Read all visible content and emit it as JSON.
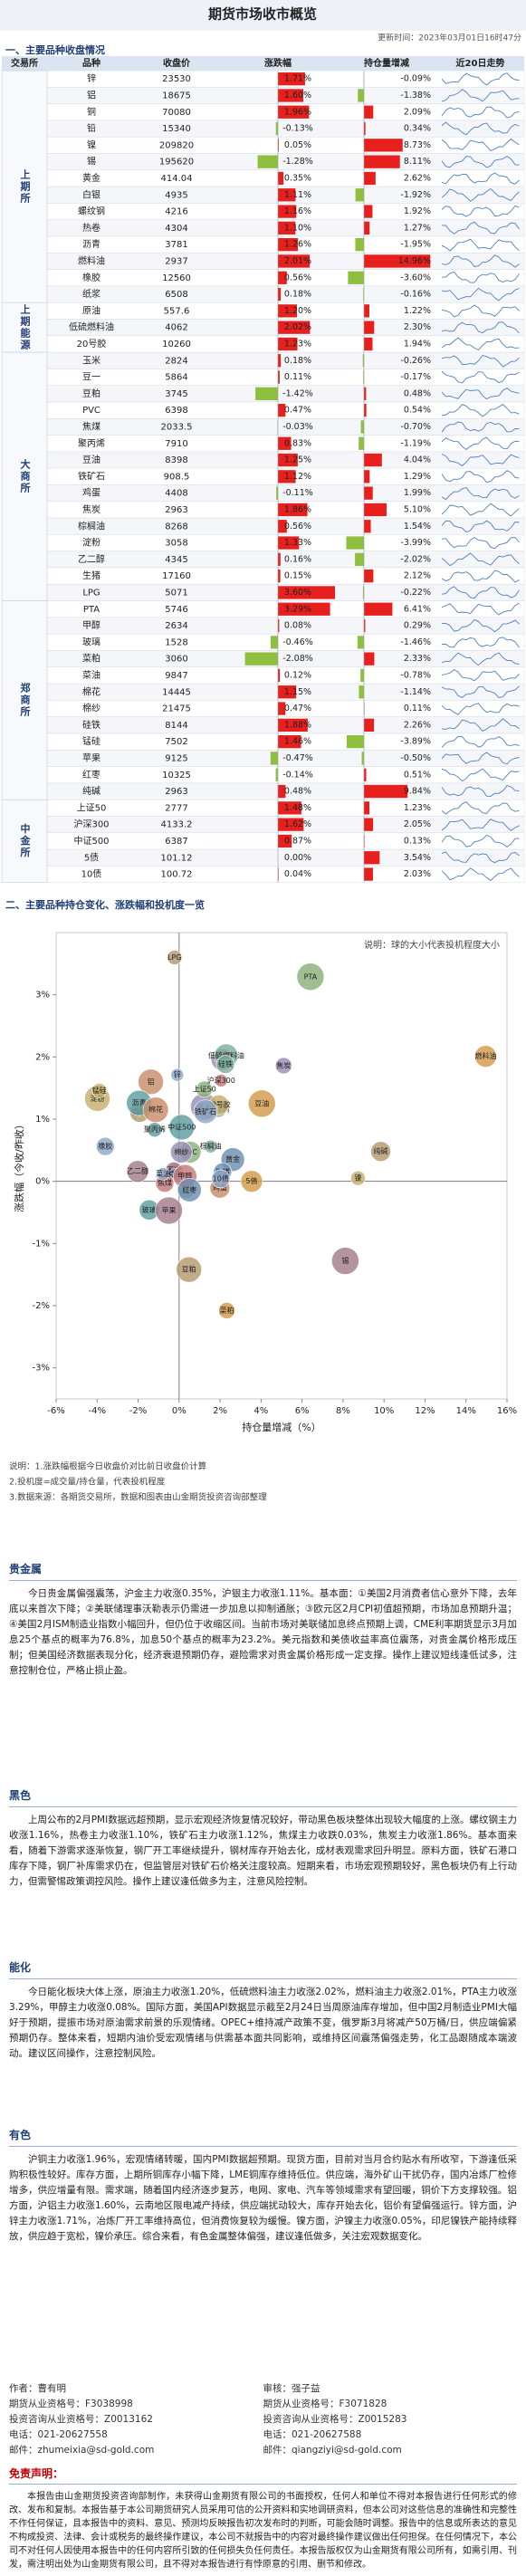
{
  "header": {
    "title": "期货市场收市概览",
    "updated": "更新时间：2023年03月01日16时47分"
  },
  "table": {
    "section": "一、主要品种收盘情况",
    "headers": [
      "交易所",
      "品种",
      "收盘价",
      "涨跌幅",
      "持仓量增减",
      "近20日走势"
    ],
    "groups": [
      {
        "name": "上期所",
        "rows": [
          {
            "name": "锌",
            "price": 23530,
            "change": {
              "value": 1.71,
              "label": "1.71%"
            },
            "hold": {
              "value": -0.09,
              "label": "-0.09%"
            }
          },
          {
            "name": "铝",
            "price": 18675,
            "change": {
              "value": 1.6,
              "label": "1.60%"
            },
            "hold": {
              "value": -1.38,
              "label": "-1.38%"
            }
          },
          {
            "name": "铜",
            "price": 70080,
            "change": {
              "value": 1.96,
              "label": "1.96%"
            },
            "hold": {
              "value": 2.09,
              "label": "2.09%"
            }
          },
          {
            "name": "铅",
            "price": 15340,
            "change": {
              "value": -0.13,
              "label": "-0.13%"
            },
            "hold": {
              "value": 0.34,
              "label": "0.34%"
            }
          },
          {
            "name": "镍",
            "price": 209820,
            "change": {
              "value": 0.05,
              "label": "0.05%"
            },
            "hold": {
              "value": 8.73,
              "label": "8.73%"
            }
          },
          {
            "name": "锡",
            "price": 195620,
            "change": {
              "value": -1.28,
              "label": "-1.28%"
            },
            "hold": {
              "value": 8.11,
              "label": "8.11%"
            }
          },
          {
            "name": "黄金",
            "price": 414.04,
            "change": {
              "value": 0.35,
              "label": "0.35%"
            },
            "hold": {
              "value": 2.62,
              "label": "2.62%"
            }
          },
          {
            "name": "白银",
            "price": 4935,
            "change": {
              "value": 1.11,
              "label": "1.11%"
            },
            "hold": {
              "value": -1.92,
              "label": "-1.92%"
            }
          },
          {
            "name": "螺纹钢",
            "price": 4216,
            "change": {
              "value": 1.16,
              "label": "1.16%"
            },
            "hold": {
              "value": 1.92,
              "label": "1.92%"
            }
          },
          {
            "name": "热卷",
            "price": 4304,
            "change": {
              "value": 1.1,
              "label": "1.10%"
            },
            "hold": {
              "value": 1.27,
              "label": "1.27%"
            }
          },
          {
            "name": "沥青",
            "price": 3781,
            "change": {
              "value": 1.26,
              "label": "1.26%"
            },
            "hold": {
              "value": -1.95,
              "label": "-1.95%"
            }
          },
          {
            "name": "燃料油",
            "price": 2937,
            "change": {
              "value": 2.01,
              "label": "2.01%"
            },
            "hold": {
              "value": 14.96,
              "label": "14.96%"
            }
          },
          {
            "name": "橡胶",
            "price": 12560,
            "change": {
              "value": 0.56,
              "label": "0.56%"
            },
            "hold": {
              "value": -3.6,
              "label": "-3.60%"
            }
          },
          {
            "name": "纸浆",
            "price": 6508,
            "change": {
              "value": 0.18,
              "label": "0.18%"
            },
            "hold": {
              "value": -0.16,
              "label": "-0.16%"
            }
          }
        ]
      },
      {
        "name": "上期能源",
        "rows": [
          {
            "name": "原油",
            "price": 557.6,
            "change": {
              "value": 1.2,
              "label": "1.20%"
            },
            "hold": {
              "value": 1.22,
              "label": "1.22%"
            }
          },
          {
            "name": "低硫燃料油",
            "price": 4062,
            "change": {
              "value": 2.02,
              "label": "2.02%"
            },
            "hold": {
              "value": 2.3,
              "label": "2.30%"
            }
          },
          {
            "name": "20号胶",
            "price": 10260,
            "change": {
              "value": 1.23,
              "label": "1.23%"
            },
            "hold": {
              "value": 1.94,
              "label": "1.94%"
            }
          }
        ]
      },
      {
        "name": "大商所",
        "rows": [
          {
            "name": "玉米",
            "price": 2824,
            "change": {
              "value": 0.18,
              "label": "0.18%"
            },
            "hold": {
              "value": -0.26,
              "label": "-0.26%"
            }
          },
          {
            "name": "豆一",
            "price": 5864,
            "change": {
              "value": 0.11,
              "label": "0.11%"
            },
            "hold": {
              "value": -0.17,
              "label": "-0.17%"
            }
          },
          {
            "name": "豆粕",
            "price": 3745,
            "change": {
              "value": -1.42,
              "label": "-1.42%"
            },
            "hold": {
              "value": 0.48,
              "label": "0.48%"
            }
          },
          {
            "name": "PVC",
            "price": 6398,
            "change": {
              "value": 0.47,
              "label": "0.47%"
            },
            "hold": {
              "value": 0.54,
              "label": "0.54%"
            }
          },
          {
            "name": "焦煤",
            "price": 2033.5,
            "change": {
              "value": -0.03,
              "label": "-0.03%"
            },
            "hold": {
              "value": -0.7,
              "label": "-0.70%"
            }
          },
          {
            "name": "聚丙烯",
            "price": 7910,
            "change": {
              "value": 0.83,
              "label": "0.83%"
            },
            "hold": {
              "value": -1.19,
              "label": "-1.19%"
            }
          },
          {
            "name": "豆油",
            "price": 8398,
            "change": {
              "value": 1.25,
              "label": "1.25%"
            },
            "hold": {
              "value": 4.04,
              "label": "4.04%"
            }
          },
          {
            "name": "铁矿石",
            "price": 908.5,
            "change": {
              "value": 1.12,
              "label": "1.12%"
            },
            "hold": {
              "value": 1.29,
              "label": "1.29%"
            }
          },
          {
            "name": "鸡蛋",
            "price": 4408,
            "change": {
              "value": -0.11,
              "label": "-0.11%"
            },
            "hold": {
              "value": 1.99,
              "label": "1.99%"
            }
          },
          {
            "name": "焦炭",
            "price": 2963,
            "change": {
              "value": 1.86,
              "label": "1.86%"
            },
            "hold": {
              "value": 5.1,
              "label": "5.10%"
            }
          },
          {
            "name": "棕榈油",
            "price": 8268,
            "change": {
              "value": 0.56,
              "label": "0.56%"
            },
            "hold": {
              "value": 1.54,
              "label": "1.54%"
            }
          },
          {
            "name": "淀粉",
            "price": 3058,
            "change": {
              "value": 1.33,
              "label": "1.33%"
            },
            "hold": {
              "value": -3.99,
              "label": "-3.99%"
            }
          },
          {
            "name": "乙二醇",
            "price": 4345,
            "change": {
              "value": 0.16,
              "label": "0.16%"
            },
            "hold": {
              "value": -2.02,
              "label": "-2.02%"
            }
          },
          {
            "name": "生猪",
            "price": 17160,
            "change": {
              "value": 0.15,
              "label": "0.15%"
            },
            "hold": {
              "value": 2.12,
              "label": "2.12%"
            }
          },
          {
            "name": "LPG",
            "price": 5071,
            "change": {
              "value": 3.6,
              "label": "3.60%"
            },
            "hold": {
              "value": -0.22,
              "label": "-0.22%"
            }
          }
        ]
      },
      {
        "name": "郑商所",
        "rows": [
          {
            "name": "PTA",
            "price": 5746,
            "change": {
              "value": 3.29,
              "label": "3.29%"
            },
            "hold": {
              "value": 6.41,
              "label": "6.41%"
            }
          },
          {
            "name": "甲醇",
            "price": 2634,
            "change": {
              "value": 0.08,
              "label": "0.08%"
            },
            "hold": {
              "value": 0.29,
              "label": "0.29%"
            }
          },
          {
            "name": "玻璃",
            "price": 1528,
            "change": {
              "value": -0.46,
              "label": "-0.46%"
            },
            "hold": {
              "value": -1.46,
              "label": "-1.46%"
            }
          },
          {
            "name": "菜粕",
            "price": 3060,
            "change": {
              "value": -2.08,
              "label": "-2.08%"
            },
            "hold": {
              "value": 2.33,
              "label": "2.33%"
            }
          },
          {
            "name": "菜油",
            "price": 9847,
            "change": {
              "value": 0.12,
              "label": "0.12%"
            },
            "hold": {
              "value": -0.78,
              "label": "-0.78%"
            }
          },
          {
            "name": "棉花",
            "price": 14445,
            "change": {
              "value": 1.15,
              "label": "1.15%"
            },
            "hold": {
              "value": -1.14,
              "label": "-1.14%"
            }
          },
          {
            "name": "棉纱",
            "price": 21475,
            "change": {
              "value": 0.47,
              "label": "0.47%"
            },
            "hold": {
              "value": 0.11,
              "label": "0.11%"
            }
          },
          {
            "name": "硅铁",
            "price": 8144,
            "change": {
              "value": 1.88,
              "label": "1.88%"
            },
            "hold": {
              "value": 2.26,
              "label": "2.26%"
            }
          },
          {
            "name": "锰硅",
            "price": 7502,
            "change": {
              "value": 1.46,
              "label": "1.46%"
            },
            "hold": {
              "value": -3.89,
              "label": "-3.89%"
            }
          },
          {
            "name": "苹果",
            "price": 9125,
            "change": {
              "value": -0.47,
              "label": "-0.47%"
            },
            "hold": {
              "value": -0.5,
              "label": "-0.50%"
            }
          },
          {
            "name": "红枣",
            "price": 10325,
            "change": {
              "value": -0.14,
              "label": "-0.14%"
            },
            "hold": {
              "value": 0.51,
              "label": "0.51%"
            }
          },
          {
            "name": "纯碱",
            "price": 2963,
            "change": {
              "value": 0.48,
              "label": "0.48%"
            },
            "hold": {
              "value": 9.84,
              "label": "9.84%"
            }
          }
        ]
      },
      {
        "name": "中金所",
        "rows": [
          {
            "name": "上证50",
            "price": 2777,
            "change": {
              "value": 1.48,
              "label": "1.48%"
            },
            "hold": {
              "value": 1.23,
              "label": "1.23%"
            }
          },
          {
            "name": "沪深300",
            "price": 4133.2,
            "change": {
              "value": 1.62,
              "label": "1.62%"
            },
            "hold": {
              "value": 2.05,
              "label": "2.05%"
            }
          },
          {
            "name": "中证500",
            "price": 6387,
            "change": {
              "value": 0.87,
              "label": "0.87%"
            },
            "hold": {
              "value": 0.13,
              "label": "0.13%"
            }
          },
          {
            "name": "5债",
            "price": 101.12,
            "change": {
              "value": 0,
              "label": "0.00%"
            },
            "hold": {
              "value": 3.54,
              "label": "3.54%"
            }
          },
          {
            "name": "10债",
            "price": 100.72,
            "change": {
              "value": 0.04,
              "label": "0.04%"
            },
            "hold": {
              "value": 2.03,
              "label": "2.03%"
            }
          }
        ]
      }
    ]
  },
  "chart_data": {
    "type": "scatter",
    "title": "二、主要品种持仓变化、涨跌幅和投机度一览",
    "note": "说明：球的大小代表投机程度大小",
    "xlabel": "持仓量增减（%）",
    "ylabel": "涨跌幅（今收/昨收）",
    "xlim": [
      -6,
      16
    ],
    "ylim": [
      -3.5,
      4
    ],
    "xticks": [
      {
        "value": -6,
        "label": "-6%"
      },
      {
        "value": -4,
        "label": "-4%"
      },
      {
        "value": -2,
        "label": "-2%"
      },
      {
        "value": 0,
        "label": "0%"
      },
      {
        "value": 2,
        "label": "2%"
      },
      {
        "value": 4,
        "label": "4%"
      },
      {
        "value": 6,
        "label": "6%"
      },
      {
        "value": 8,
        "label": "8%"
      },
      {
        "value": 10,
        "label": "10%"
      },
      {
        "value": 12,
        "label": "12%"
      },
      {
        "value": 14,
        "label": "14%"
      },
      {
        "value": 16,
        "label": "16%"
      }
    ],
    "yticks": [
      {
        "value": -3,
        "label": "-3%"
      },
      {
        "value": -2,
        "label": "-2%"
      },
      {
        "value": -1,
        "label": "-1%"
      },
      {
        "value": 0,
        "label": "0%"
      },
      {
        "value": 1,
        "label": "1%"
      },
      {
        "value": 2,
        "label": "2%"
      },
      {
        "value": 3,
        "label": "3%"
      }
    ]
  },
  "notes": [
    "说明：1.涨跌幅根据今日收盘价对比前日收盘价计算",
    "2.投机度=成交量/持仓量，代表投机程度",
    "3.数据来源：各期货交易所，数据和图表由山金期货投资咨询部整理"
  ],
  "sections": [
    {
      "title": "贵金属",
      "text": "今日贵金属偏强震荡，沪金主力收涨0.35%，沪银主力收涨1.11%。基本面：①美国2月消费者信心意外下降，去年底以来首次下降；②美联储理事沃勒表示仍需进一步加息以抑制通胀；③欧元区2月CPI初值超预期，市场加息预期升温；④美国2月ISM制造业指数小幅回升，但仍位于收缩区间。当前市场对美联储加息终点预期上调，CME利率期货显示3月加息25个基点的概率为76.8%，加息50个基点的概率为23.2%。美元指数和美债收益率高位震荡，对贵金属价格形成压制；但美国经济数据表现分化，经济衰退预期仍存，避险需求对贵金属价格形成一定支撑。操作上建议短线逢低试多，注意控制仓位，严格止损止盈。"
    },
    {
      "title": "黑色",
      "text": "上周公布的2月PMI数据远超预期，显示宏观经济恢复情况较好，带动黑色板块整体出现较大幅度的上涨。螺纹钢主力收涨1.16%，热卷主力收涨1.10%，铁矿石主力收涨1.12%，焦煤主力收跌0.03%，焦炭主力收涨1.86%。基本面来看，随着下游需求逐渐恢复，钢厂开工率继续提升，钢材库存开始去化，成材表观需求回升明显。原料方面，铁矿石港口库存下降，钢厂补库需求仍在，但监管层对铁矿石价格关注度较高。短期来看，市场宏观预期较好，黑色板块仍有上行动力，但需警惕政策调控风险。操作上建议逢低做多为主，注意风险控制。"
    },
    {
      "title": "能化",
      "text": "今日能化板块大体上涨，原油主力收涨1.20%，低硫燃料油主力收涨2.02%，燃料油主力收涨2.01%，PTA主力收涨3.29%，甲醇主力收涨0.08%。国际方面，美国API数据显示截至2月24日当周原油库存增加，但中国2月制造业PMI大幅好于预期，提振市场对原油需求前景的乐观情绪。OPEC+维持减产政策不变，俄罗斯3月将减产50万桶/日，供应端偏紧预期仍存。整体来看，短期内油价受宏观情绪与供需基本面共同影响，或维持区间震荡偏强走势，化工品跟随成本端波动。建议区间操作，注意控制风险。"
    },
    {
      "title": "有色",
      "text": "沪铜主力收涨1.96%，宏观情绪转暖，国内PMI数据超预期。现货方面，目前对当月合约贴水有所收窄，下游逢低采购积极性较好。库存方面，上期所铜库存小幅下降，LME铜库存维持低位。供应端，海外矿山干扰仍存，国内冶炼厂检修增多，供应增量有限。需求端，随着国内经济逐步复苏，电网、家电、汽车等领域需求有望回暖，铜价下方支撑较强。铝方面，沪铝主力收涨1.60%，云南地区限电减产持续，供应端扰动较大，库存开始去化，铝价有望偏强运行。锌方面，沪锌主力收涨1.71%，冶炼厂开工率维持高位，但消费恢复较为缓慢。镍方面，沪镍主力收涨0.05%，印尼镍铁产能持续释放，供应趋于宽松，镍价承压。综合来看，有色金属整体偏强，建议逢低做多，关注宏观数据变化。"
    }
  ],
  "contacts": {
    "left": [
      "作者：曹有明",
      "期货从业资格号：F3038998",
      "投资咨询从业资格号：Z0013162",
      "电话：021-20627558",
      "邮件：zhumeixia@sd-gold.com"
    ],
    "right": [
      "审核：强子益",
      "期货从业资格号：F3071828",
      "投资咨询从业资格号：Z0015283",
      "电话：021-20627588",
      "邮件：qiangziyi@sd-gold.com"
    ]
  },
  "disclaimer": {
    "title": "免责声明：",
    "text": "本报告由山金期货投资咨询部制作，未获得山金期货有限公司的书面授权，任何人和单位不得对本报告进行任何形式的修改、发布和复制。本报告基于本公司期货研究人员采用可信的公开资料和实地调研资料，但本公司对这些信息的准确性和完整性不作任何保证，且本报告中的资料、意见、预测均反映报告初次发布时的判断，可能会随时调整。报告中的信息或所表达的意见不构成投资、法律、会计或税务的最终操作建议，本公司不就报告中的内容对最终操作建议做出任何担保。在任何情况下，本公司不对任何人因使用本报告中的任何内容所引致的任何损失负任何责任。本报告版权仅为山金期货有限公司所有，如需引用、刊发，需注明出处为山金期货有限公司，且不得对本报告进行有悖原意的引用、删节和修改。"
  }
}
